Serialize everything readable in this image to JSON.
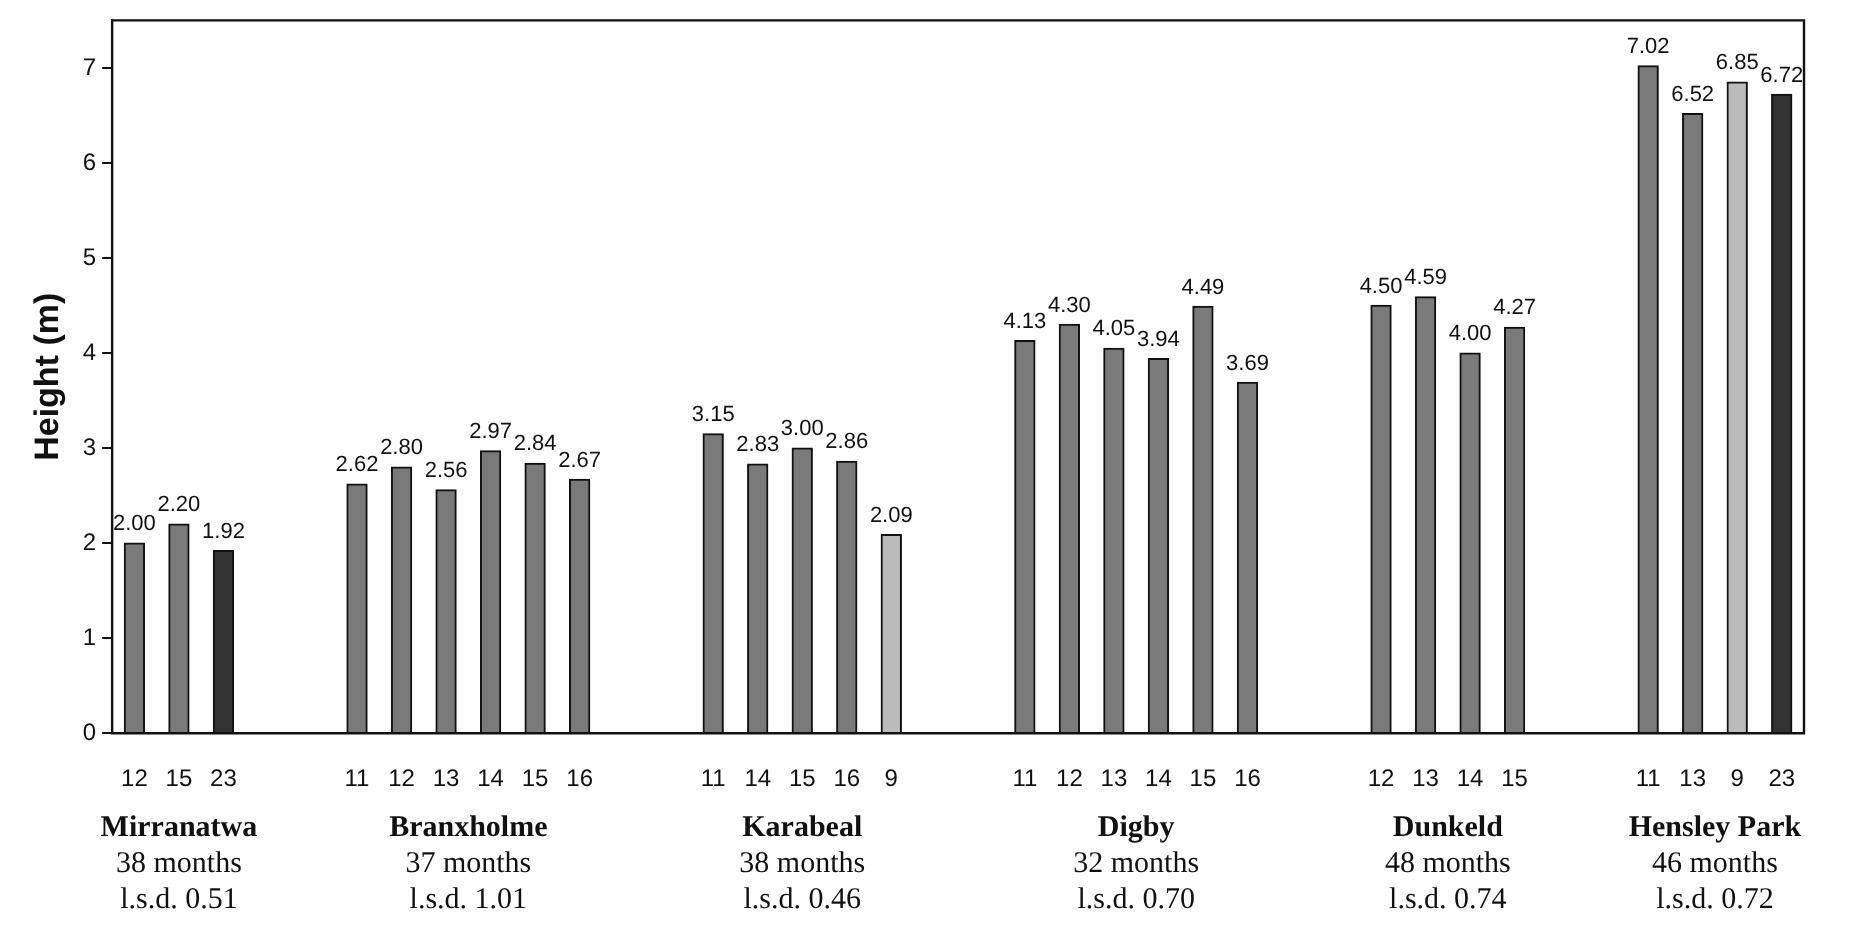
{
  "chart_data": {
    "type": "bar",
    "ylabel": "Height (m)",
    "categories": [
      "12",
      "15",
      "23",
      null,
      null,
      "11",
      "12",
      "13",
      "14",
      "15",
      "16",
      null,
      null,
      "11",
      "14",
      "15",
      "16",
      "9",
      null,
      null,
      "11",
      "12",
      "13",
      "14",
      "15",
      "16",
      null,
      null,
      "12",
      "13",
      "14",
      "15",
      null,
      null,
      "11",
      "13",
      "9",
      "23"
    ],
    "values": [
      2.0,
      2.2,
      1.92,
      null,
      null,
      2.62,
      2.8,
      2.56,
      2.97,
      2.84,
      2.67,
      null,
      null,
      3.15,
      2.83,
      3.0,
      2.86,
      2.09,
      null,
      null,
      4.13,
      4.3,
      4.05,
      3.94,
      4.49,
      3.69,
      null,
      null,
      4.5,
      4.59,
      4.0,
      4.27,
      null,
      null,
      7.02,
      6.52,
      6.85,
      6.72
    ],
    "value_labels": [
      "2.00",
      "2.20",
      "1.92",
      null,
      null,
      "2.62",
      "2.80",
      "2.56",
      "2.97",
      "2.84",
      "2.67",
      null,
      null,
      "3.15",
      "2.83",
      "3.00",
      "2.86",
      "2.09",
      null,
      null,
      "4.13",
      "4.30",
      "4.05",
      "3.94",
      "4.49",
      "3.69",
      null,
      null,
      "4.50",
      "4.59",
      "4.00",
      "4.27",
      null,
      null,
      "7.02",
      "6.52",
      "6.85",
      "6.72"
    ],
    "colors": [
      "#7a7a7a",
      "#7a7a7a",
      "#333333",
      null,
      null,
      "#7a7a7a",
      "#7a7a7a",
      "#7a7a7a",
      "#7a7a7a",
      "#7a7a7a",
      "#7a7a7a",
      null,
      null,
      "#7a7a7a",
      "#7a7a7a",
      "#7a7a7a",
      "#7a7a7a",
      "#bbbbbb",
      null,
      null,
      "#7a7a7a",
      "#7a7a7a",
      "#7a7a7a",
      "#7a7a7a",
      "#7a7a7a",
      "#7a7a7a",
      null,
      null,
      "#7a7a7a",
      "#7a7a7a",
      "#7a7a7a",
      "#7a7a7a",
      null,
      null,
      "#7a7a7a",
      "#7a7a7a",
      "#bbbbbb",
      "#333333"
    ],
    "ylim": [
      0,
      7.5
    ],
    "yticks": [
      0,
      1,
      2,
      3,
      4,
      5,
      6,
      7
    ],
    "grid": false,
    "legend": false,
    "annotations": [
      "Mirranatwa",
      "38 months",
      "l.s.d. 0.51",
      "Branxholme",
      "37 months",
      "l.s.d. 1.01",
      "Karabeal",
      "38 months",
      "l.s.d. 0.46",
      "Digby",
      "32 months",
      "l.s.d. 0.70",
      "Dunkeld",
      "48 months",
      "l.s.d. 0.74",
      "Hensley Park",
      "46 months",
      "l.s.d. 0.72"
    ]
  }
}
